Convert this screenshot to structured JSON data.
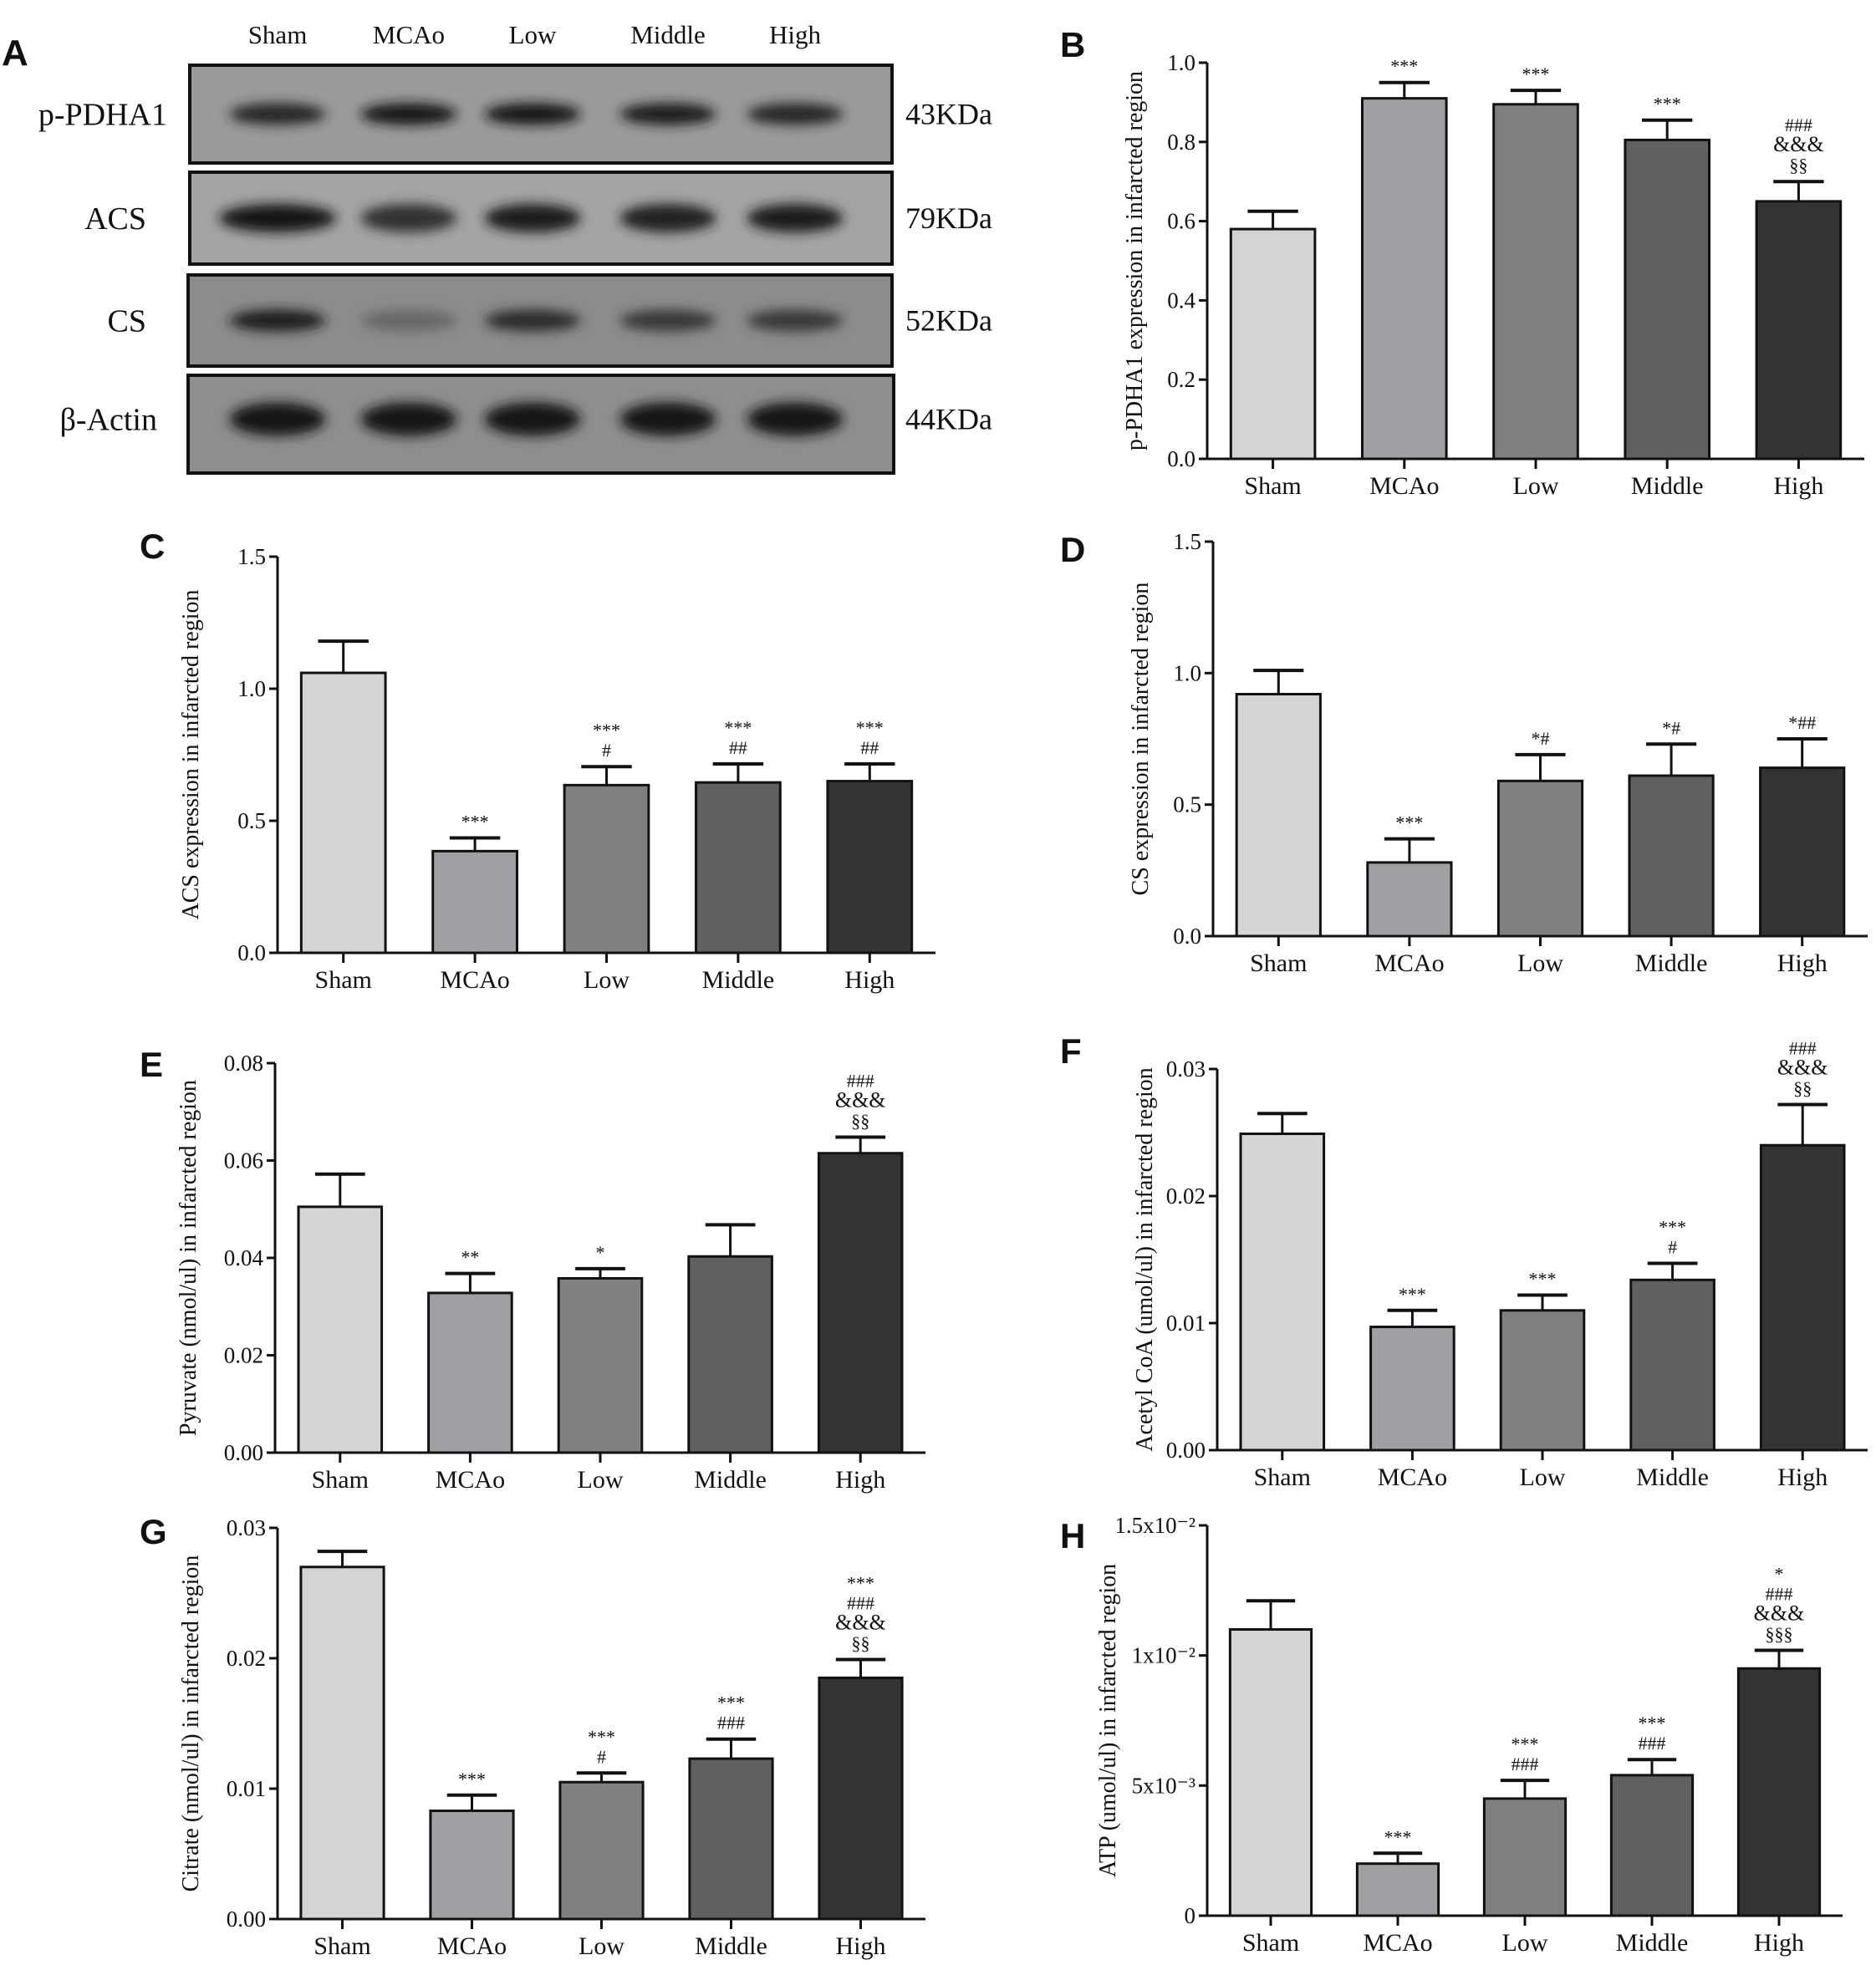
{
  "colors": [
    "#d4d4d4",
    "#a0a0a4",
    "#808080",
    "#606060",
    "#333333"
  ],
  "blot": {
    "letter": "A",
    "lanes": [
      "Sham",
      "MCAo",
      "Low",
      "Middle",
      "High"
    ],
    "rows": [
      {
        "label": "p-PDHA1",
        "size": "43KDa",
        "intensity": [
          0.85,
          1.0,
          1.0,
          0.95,
          0.85
        ]
      },
      {
        "label": "ACS",
        "size": "79KDa",
        "intensity": [
          1.0,
          0.75,
          0.95,
          0.9,
          0.95
        ]
      },
      {
        "label": "CS",
        "size": "52KDa",
        "intensity": [
          0.95,
          0.3,
          0.8,
          0.7,
          0.7
        ]
      },
      {
        "label": "β-Actin",
        "size": "44KDa",
        "intensity": [
          1.0,
          1.0,
          1.0,
          1.0,
          1.0
        ]
      }
    ]
  },
  "chart_data": [
    {
      "letter": "B",
      "type": "bar",
      "categories": [
        "Sham",
        "MCAo",
        "Low",
        "Middle",
        "High"
      ],
      "values": [
        0.58,
        0.91,
        0.895,
        0.805,
        0.65
      ],
      "errors": [
        0.045,
        0.04,
        0.035,
        0.05,
        0.05
      ],
      "annotations": [
        [],
        [
          "***"
        ],
        [
          "***"
        ],
        [
          "***"
        ],
        [
          "###",
          "&&&",
          "§§"
        ]
      ],
      "ylabel": "p-PDHA1 expression in infarcted region",
      "ylim": [
        0,
        1.0
      ],
      "ticks": [
        0,
        0.2,
        0.4,
        0.6,
        0.8,
        1.0
      ],
      "tick_labels": [
        "0.0",
        "0.2",
        "0.4",
        "0.6",
        "0.8",
        "1.0"
      ]
    },
    {
      "letter": "C",
      "type": "bar",
      "categories": [
        "Sham",
        "MCAo",
        "Low",
        "Middle",
        "High"
      ],
      "values": [
        1.06,
        0.385,
        0.635,
        0.645,
        0.65
      ],
      "errors": [
        0.12,
        0.05,
        0.07,
        0.07,
        0.065
      ],
      "annotations": [
        [],
        [
          "***"
        ],
        [
          "***",
          "#"
        ],
        [
          "***",
          "##"
        ],
        [
          "***",
          "##"
        ]
      ],
      "ylabel": "ACS expression in infarcted region",
      "ylim": [
        0,
        1.5
      ],
      "ticks": [
        0,
        0.5,
        1.0,
        1.5
      ],
      "tick_labels": [
        "0.0",
        "0.5",
        "1.0",
        "1.5"
      ]
    },
    {
      "letter": "D",
      "type": "bar",
      "categories": [
        "Sham",
        "MCAo",
        "Low",
        "Middle",
        "High"
      ],
      "values": [
        0.92,
        0.28,
        0.59,
        0.61,
        0.64
      ],
      "errors": [
        0.09,
        0.09,
        0.1,
        0.12,
        0.11
      ],
      "annotations": [
        [],
        [
          "***"
        ],
        [
          "*#"
        ],
        [
          "*#"
        ],
        [
          "*##"
        ]
      ],
      "ylabel": "CS expression in infarcted region",
      "ylim": [
        0,
        1.5
      ],
      "ticks": [
        0,
        0.5,
        1.0,
        1.5
      ],
      "tick_labels": [
        "0.0",
        "0.5",
        "1.0",
        "1.5"
      ]
    },
    {
      "letter": "E",
      "type": "bar",
      "categories": [
        "Sham",
        "MCAo",
        "Low",
        "Middle",
        "High"
      ],
      "values": [
        0.0505,
        0.0328,
        0.0358,
        0.0403,
        0.0615
      ],
      "errors": [
        0.0067,
        0.004,
        0.002,
        0.0065,
        0.0033
      ],
      "annotations": [
        [],
        [
          "**"
        ],
        [
          "*"
        ],
        [],
        [
          "###",
          "&&&",
          "§§"
        ]
      ],
      "ylabel": "Pyruvate (nmol/ul) in infarcted region",
      "ylim": [
        0,
        0.08
      ],
      "ticks": [
        0,
        0.02,
        0.04,
        0.06,
        0.08
      ],
      "tick_labels": [
        "0.00",
        "0.02",
        "0.04",
        "0.06",
        "0.08"
      ]
    },
    {
      "letter": "F",
      "type": "bar",
      "categories": [
        "Sham",
        "MCAo",
        "Low",
        "Middle",
        "High"
      ],
      "values": [
        0.0249,
        0.0097,
        0.011,
        0.0134,
        0.024
      ],
      "errors": [
        0.0016,
        0.0013,
        0.0012,
        0.0013,
        0.0032
      ],
      "annotations": [
        [],
        [
          "***"
        ],
        [
          "***"
        ],
        [
          "***",
          "#"
        ],
        [
          "###",
          "&&&",
          "§§"
        ]
      ],
      "ylabel": "Acetyl CoA (umol/ul) in infarcted region",
      "ylim": [
        0,
        0.03
      ],
      "ticks": [
        0,
        0.01,
        0.02,
        0.03
      ],
      "tick_labels": [
        "0.00",
        "0.01",
        "0.02",
        "0.03"
      ]
    },
    {
      "letter": "G",
      "type": "bar",
      "categories": [
        "Sham",
        "MCAo",
        "Low",
        "Middle",
        "High"
      ],
      "values": [
        0.027,
        0.0083,
        0.0105,
        0.0123,
        0.0185
      ],
      "errors": [
        0.0012,
        0.0012,
        0.0007,
        0.0015,
        0.0014
      ],
      "annotations": [
        [],
        [
          "***"
        ],
        [
          "***",
          "#"
        ],
        [
          "***",
          "###"
        ],
        [
          "***",
          "###",
          "&&&",
          "§§"
        ]
      ],
      "ylabel": "Citrate (nmol/ul) in infarcted region",
      "ylim": [
        0,
        0.03
      ],
      "ticks": [
        0,
        0.01,
        0.02,
        0.03
      ],
      "tick_labels": [
        "0.00",
        "0.01",
        "0.02",
        "0.03"
      ]
    },
    {
      "letter": "H",
      "type": "bar",
      "categories": [
        "Sham",
        "MCAo",
        "Low",
        "Middle",
        "High"
      ],
      "values": [
        0.011,
        0.002,
        0.0045,
        0.0054,
        0.0095
      ],
      "errors": [
        0.0011,
        0.0004,
        0.0007,
        0.0006,
        0.0007
      ],
      "annotations": [
        [],
        [
          "***"
        ],
        [
          "***",
          "###"
        ],
        [
          "***",
          "###"
        ],
        [
          "*",
          "###",
          "&&&",
          "§§§"
        ]
      ],
      "ylabel": "ATP (umol/ul) in infarcted region",
      "ylim": [
        0,
        0.015
      ],
      "ticks": [
        0,
        0.005,
        0.01,
        0.015
      ],
      "tick_labels": [
        "0",
        "5x10⁻³",
        "1x10⁻²",
        "1.5x10⁻²"
      ]
    }
  ]
}
